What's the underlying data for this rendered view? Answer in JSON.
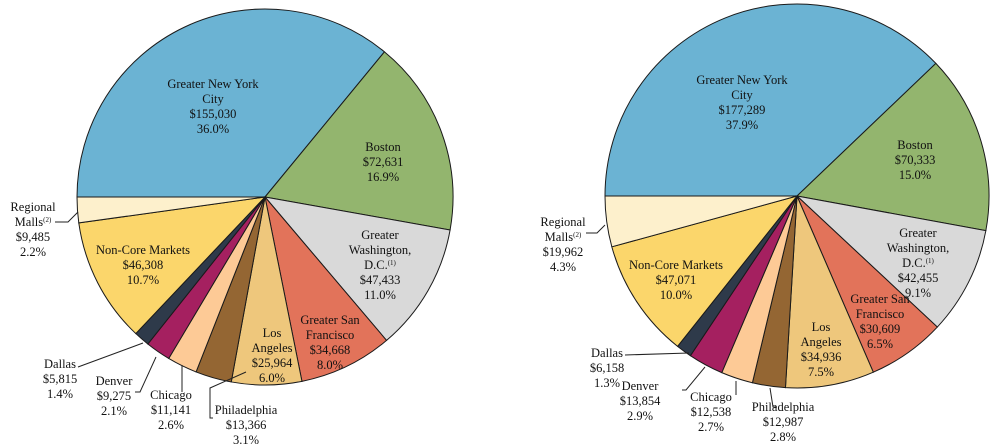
{
  "chart_data": [
    {
      "type": "pie",
      "slices": [
        {
          "name": [
            "Greater New York",
            "City"
          ],
          "value": "$155,030",
          "pct": "36.0%",
          "v": 155030,
          "color": "#6bb3d3"
        },
        {
          "name": [
            "Boston"
          ],
          "value": "$72,631",
          "pct": "16.9%",
          "v": 72631,
          "color": "#93b56e"
        },
        {
          "name": [
            "Greater",
            "Washington,",
            "D.C."
          ],
          "footnote": "(1)",
          "value": "$47,433",
          "pct": "11.0%",
          "v": 47433,
          "color": "#d9d9d9"
        },
        {
          "name": [
            "Greater San",
            "Francisco"
          ],
          "value": "$34,668",
          "pct": "8.0%",
          "v": 34668,
          "color": "#e2735a"
        },
        {
          "name": [
            "Los",
            "Angeles"
          ],
          "value": "$25,964",
          "pct": "6.0%",
          "v": 25964,
          "color": "#eec77c"
        },
        {
          "name": [
            "Philadelphia"
          ],
          "value": "$13,366",
          "pct": "3.1%",
          "v": 13366,
          "color": "#946633"
        },
        {
          "name": [
            "Chicago"
          ],
          "value": "$11,141",
          "pct": "2.6%",
          "v": 11141,
          "color": "#fdca96"
        },
        {
          "name": [
            "Denver"
          ],
          "value": "$9,275",
          "pct": "2.1%",
          "v": 9275,
          "color": "#a52060"
        },
        {
          "name": [
            "Dallas"
          ],
          "value": "$5,815",
          "pct": "1.4%",
          "v": 5815,
          "color": "#2e3a4a"
        },
        {
          "name": [
            "Non-Core Markets"
          ],
          "value": "$46,308",
          "pct": "10.7%",
          "v": 46308,
          "color": "#fbd66b"
        },
        {
          "name": [
            "Regional",
            "Malls"
          ],
          "footnote": "(2)",
          "value": "$9,485",
          "pct": "2.2%",
          "v": 9485,
          "color": "#fdf0cc"
        }
      ]
    },
    {
      "type": "pie",
      "slices": [
        {
          "name": [
            "Greater New York",
            "City"
          ],
          "value": "$177,289",
          "pct": "37.9%",
          "v": 177289,
          "color": "#6bb3d3"
        },
        {
          "name": [
            "Boston"
          ],
          "value": "$70,333",
          "pct": "15.0%",
          "v": 70333,
          "color": "#93b56e"
        },
        {
          "name": [
            "Greater",
            "Washington,",
            "D.C."
          ],
          "footnote": "(1)",
          "value": "$42,455",
          "pct": "9.1%",
          "v": 42455,
          "color": "#d9d9d9"
        },
        {
          "name": [
            "Greater San",
            "Francisco"
          ],
          "value": "$30,609",
          "pct": "6.5%",
          "v": 30609,
          "color": "#e2735a"
        },
        {
          "name": [
            "Los",
            "Angeles"
          ],
          "value": "$34,936",
          "pct": "7.5%",
          "v": 34936,
          "color": "#eec77c"
        },
        {
          "name": [
            "Philadelphia"
          ],
          "value": "$12,987",
          "pct": "2.8%",
          "v": 12987,
          "color": "#946633"
        },
        {
          "name": [
            "Chicago"
          ],
          "value": "$12,538",
          "pct": "2.7%",
          "v": 12538,
          "color": "#fdca96"
        },
        {
          "name": [
            "Denver"
          ],
          "value": "$13,854",
          "pct": "2.9%",
          "v": 13854,
          "color": "#a52060"
        },
        {
          "name": [
            "Dallas"
          ],
          "value": "$6,158",
          "pct": "1.3%",
          "v": 6158,
          "color": "#2e3a4a"
        },
        {
          "name": [
            "Non-Core Markets"
          ],
          "value": "$47,071",
          "pct": "10.0%",
          "v": 47071,
          "color": "#fbd66b"
        },
        {
          "name": [
            "Regional",
            "Malls"
          ],
          "footnote": "(2)",
          "value": "$19,962",
          "pct": "4.3%",
          "v": 19962,
          "color": "#fdf0cc"
        }
      ]
    }
  ]
}
